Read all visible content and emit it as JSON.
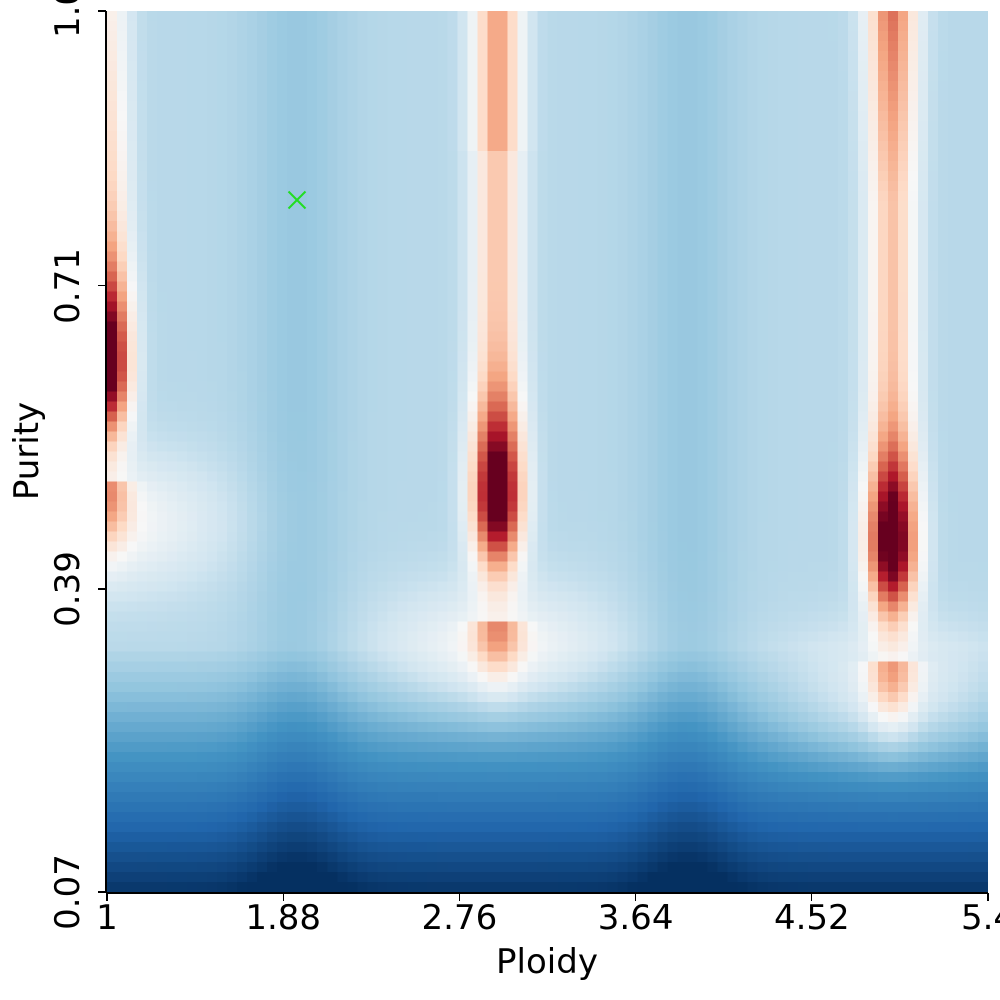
{
  "chart_data": {
    "type": "heatmap",
    "title": "",
    "xlabel": "Ploidy",
    "ylabel": "Purity",
    "x_ticks": [
      "1",
      "1.88",
      "2.76",
      "3.64",
      "4.52",
      "5.4"
    ],
    "y_ticks": [
      "0.07",
      "0.39",
      "0.71",
      "1.0"
    ],
    "xlim": [
      1,
      5.4
    ],
    "ylim": [
      0.07,
      1.0
    ],
    "grid_cols": 88,
    "grid_rows": 88,
    "colormap": "RdBu_r",
    "grid": false,
    "legend": "none",
    "ridges": [
      {
        "ploidy_center": 1.0,
        "peak_purity": 0.63,
        "width": 0.11
      },
      {
        "ploidy_center": 2.95,
        "peak_purity": 0.49,
        "width": 0.12
      },
      {
        "ploidy_center": 4.92,
        "peak_purity": 0.44,
        "width": 0.12
      }
    ],
    "marker": {
      "ploidy": 1.95,
      "purity": 0.8,
      "symbol": "x",
      "color": "#22dd22"
    },
    "notes": "Red (high) vertical ridges near ploidy 1.0, ~2.95 and ~4.92; blue valleys between; deep blue at low purity."
  },
  "axes": {
    "x_title": "Ploidy",
    "y_title": "Purity"
  }
}
